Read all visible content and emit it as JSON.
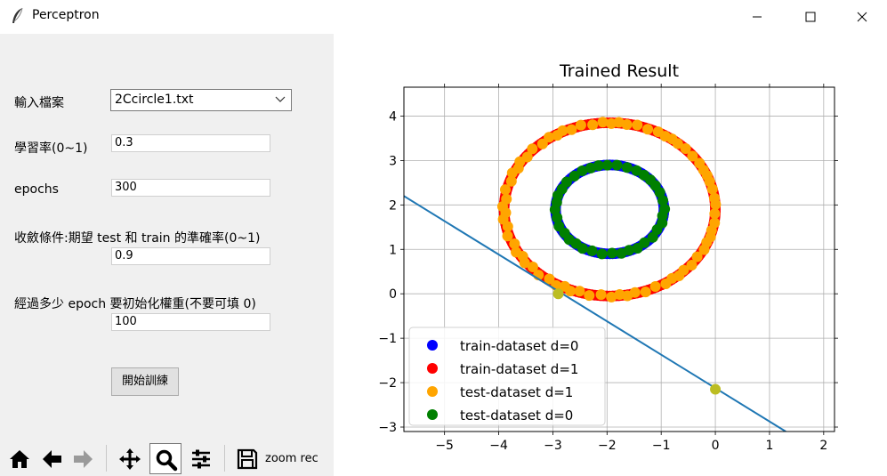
{
  "window": {
    "title": "Perceptron"
  },
  "form": {
    "file_label": "輸入檔案",
    "file_value": "2Ccircle1.txt",
    "lr_label": "學習率(0~1)",
    "lr_value": "0.3",
    "epochs_label": "epochs",
    "epochs_value": "300",
    "converge_label": "收斂條件:期望 test 和 train 的準確率(0~1)",
    "converge_value": "0.9",
    "reinit_label": "經過多少 epoch 要初始化權重(不要可填 0)",
    "reinit_value": "100",
    "train_button": "開始訓練"
  },
  "toolbar": {
    "message": "zoom rec",
    "icons": [
      "home-icon",
      "back-arrow-icon",
      "forward-arrow-icon",
      "pan-icon",
      "zoom-icon",
      "configure-icon",
      "save-icon"
    ]
  },
  "chart_data": {
    "type": "scatter",
    "title": "Trained Result",
    "xlabel": "",
    "ylabel": "",
    "xlim": [
      -5.75,
      2.2
    ],
    "ylim": [
      -3.1,
      4.65
    ],
    "xticks": [
      -5,
      -4,
      -3,
      -2,
      -1,
      0,
      1,
      2
    ],
    "yticks": [
      -3,
      -2,
      -1,
      0,
      1,
      2,
      3,
      4
    ],
    "grid": true,
    "legend_position": "lower-left",
    "series": [
      {
        "name": "train-dataset d=0",
        "color": "#0000ff",
        "shape": "circle",
        "center": [
          -1.95,
          1.9
        ],
        "radius": 1.0
      },
      {
        "name": "train-dataset d=1",
        "color": "#ff0000",
        "shape": "circle",
        "center": [
          -1.95,
          1.9
        ],
        "radius": 1.95
      },
      {
        "name": "test-dataset d=1",
        "color": "#ffa500",
        "shape": "circle",
        "center": [
          -1.95,
          1.9
        ],
        "radius": 1.95
      },
      {
        "name": "test-dataset d=0",
        "color": "#008000",
        "shape": "circle",
        "center": [
          -1.95,
          1.9
        ],
        "radius": 1.0
      }
    ],
    "decision_line": {
      "color": "#1f77b4",
      "points": [
        [
          -5.75,
          2.2
        ],
        [
          1.3,
          -3.1
        ]
      ]
    },
    "intercept_points": {
      "color": "#bcbd22",
      "points": [
        [
          -2.9,
          0.0
        ],
        [
          0.0,
          -2.15
        ]
      ]
    }
  }
}
